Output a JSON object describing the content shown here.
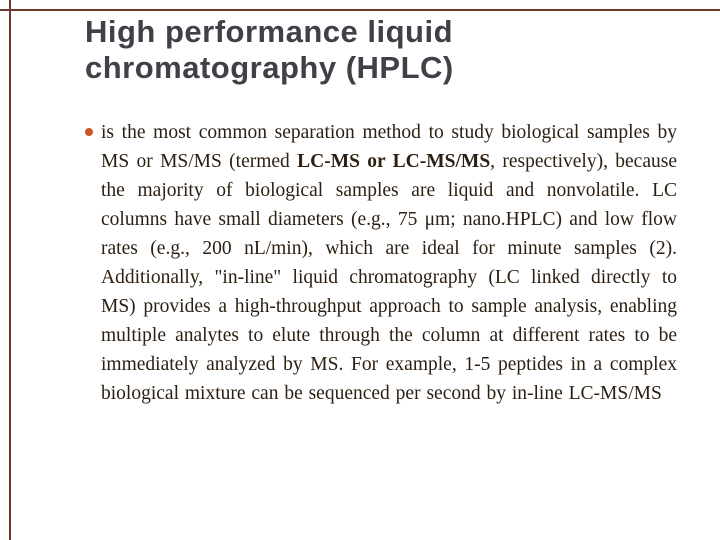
{
  "slide": {
    "title_line1": "High performance liquid",
    "title_line2": "chromatography (HPLC)",
    "accent_frame_color": "#6e3a2b",
    "bullet_color": "#cc5427",
    "title_color": "#404048",
    "body_text_color": "#2d2013",
    "body": {
      "seg1": " is the most common separation method to study biological samples by MS or MS/MS (termed ",
      "seg2": "LC-MS or LC-MS/MS",
      "seg3": ", respectively), because the majority of biological samples are liquid and nonvolatile. LC columns have small diameters (e.g., 75 μm; nano.HPLC) and low flow rates (e.g., 200 nL/min), which are ideal for minute samples (2). Additionally, \"in-line\" liquid chromatography (LC linked directly to MS) provides a high-throughput approach to sample analysis, enabling multiple analytes to elute through the column at different rates to be immediately analyzed by MS. For example, 1-5 peptides in a complex biological mixture can be sequenced per second by in-line LC-MS/MS"
    }
  }
}
